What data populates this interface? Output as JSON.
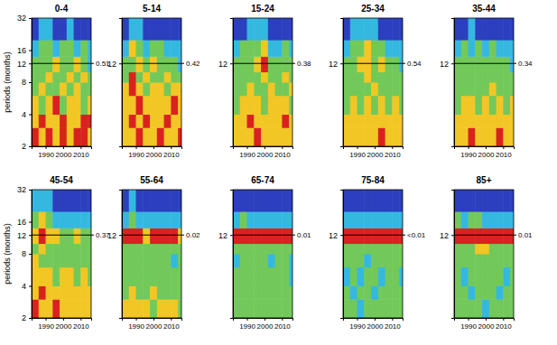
{
  "chart_data": [
    {
      "type": "heatmap",
      "title": "0-4",
      "ylabel": "periods (months)",
      "log": "y",
      "xlim": [
        1982,
        2016
      ],
      "xticks": [
        1990,
        2000,
        2010
      ],
      "ylim": [
        2,
        32
      ],
      "yticks": [
        2,
        4,
        8,
        12,
        16,
        32
      ],
      "hline": 12,
      "annotation": "0.51",
      "zlim": [
        0,
        4
      ],
      "x": [
        1982,
        1986,
        1990,
        1994,
        1998,
        2002,
        2006,
        2010,
        2014,
        2016
      ],
      "y": [
        2,
        3,
        4,
        6,
        8,
        10,
        14,
        20,
        32
      ],
      "z": [
        [
          4,
          3,
          4,
          3,
          4,
          3,
          4,
          4,
          3
        ],
        [
          3,
          4,
          3,
          3,
          4,
          3,
          3,
          4,
          4
        ],
        [
          3,
          2,
          3,
          4,
          2,
          3,
          3,
          2,
          3
        ],
        [
          2,
          3,
          2,
          2,
          3,
          2,
          3,
          2,
          2
        ],
        [
          2,
          2,
          3,
          2,
          2,
          3,
          2,
          3,
          2
        ],
        [
          2,
          2,
          2,
          3,
          2,
          2,
          3,
          2,
          1
        ],
        [
          1,
          2,
          2,
          1,
          2,
          2,
          1,
          2,
          1
        ],
        [
          0,
          1,
          1,
          0,
          0,
          1,
          0,
          0,
          0
        ]
      ]
    },
    {
      "type": "heatmap",
      "title": "5-14",
      "log": "y",
      "xlim": [
        1982,
        2016
      ],
      "xticks": [
        1990,
        2000,
        2010
      ],
      "ylim": [
        2,
        32
      ],
      "yticks": [
        12
      ],
      "hline": 12,
      "annotation": "0.42",
      "zlim": [
        0,
        4
      ],
      "x": [
        1982,
        1986,
        1990,
        1994,
        1998,
        2002,
        2006,
        2010,
        2014,
        2016
      ],
      "y": [
        2,
        3,
        4,
        6,
        8,
        10,
        14,
        20,
        32
      ],
      "z": [
        [
          3,
          3,
          4,
          3,
          3,
          4,
          3,
          3,
          4
        ],
        [
          3,
          4,
          3,
          4,
          3,
          3,
          4,
          3,
          3
        ],
        [
          3,
          3,
          4,
          3,
          3,
          3,
          3,
          4,
          3
        ],
        [
          3,
          4,
          3,
          2,
          3,
          3,
          2,
          3,
          3
        ],
        [
          2,
          4,
          2,
          3,
          2,
          2,
          3,
          2,
          2
        ],
        [
          2,
          2,
          3,
          2,
          3,
          2,
          2,
          2,
          1
        ],
        [
          1,
          3,
          2,
          1,
          2,
          2,
          1,
          1,
          1
        ],
        [
          0,
          1,
          1,
          0,
          0,
          0,
          0,
          0,
          0
        ]
      ]
    },
    {
      "type": "heatmap",
      "title": "15-24",
      "log": "y",
      "xlim": [
        1982,
        2016
      ],
      "xticks": [
        1990,
        2000,
        2010
      ],
      "ylim": [
        2,
        32
      ],
      "yticks": [
        12
      ],
      "hline": 12,
      "annotation": "0.38",
      "zlim": [
        0,
        4
      ],
      "x": [
        1982,
        1986,
        1990,
        1994,
        1998,
        2002,
        2006,
        2010,
        2014,
        2016
      ],
      "y": [
        2,
        3,
        4,
        6,
        8,
        10,
        14,
        20,
        32
      ],
      "z": [
        [
          3,
          3,
          3,
          4,
          3,
          3,
          3,
          3,
          3
        ],
        [
          3,
          3,
          4,
          3,
          3,
          3,
          3,
          4,
          3
        ],
        [
          2,
          3,
          3,
          3,
          2,
          3,
          3,
          3,
          2
        ],
        [
          2,
          2,
          3,
          2,
          2,
          3,
          2,
          2,
          3
        ],
        [
          2,
          2,
          2,
          2,
          3,
          2,
          2,
          3,
          2
        ],
        [
          2,
          2,
          2,
          3,
          4,
          2,
          2,
          2,
          2
        ],
        [
          1,
          2,
          2,
          2,
          3,
          1,
          1,
          2,
          1
        ],
        [
          0,
          0,
          1,
          1,
          1,
          0,
          0,
          0,
          0
        ]
      ]
    },
    {
      "type": "heatmap",
      "title": "25-34",
      "log": "y",
      "xlim": [
        1982,
        2016
      ],
      "xticks": [
        1990,
        2000,
        2010
      ],
      "ylim": [
        2,
        32
      ],
      "yticks": [
        12
      ],
      "hline": 12,
      "annotation": "0.54",
      "zlim": [
        0,
        4
      ],
      "x": [
        1982,
        1986,
        1990,
        1994,
        1998,
        2002,
        2006,
        2010,
        2014,
        2016
      ],
      "y": [
        2,
        3,
        4,
        6,
        8,
        10,
        14,
        20,
        32
      ],
      "z": [
        [
          3,
          3,
          3,
          3,
          3,
          4,
          3,
          3,
          3
        ],
        [
          3,
          3,
          3,
          3,
          3,
          3,
          3,
          3,
          3
        ],
        [
          2,
          3,
          2,
          3,
          2,
          3,
          2,
          3,
          2
        ],
        [
          2,
          2,
          2,
          2,
          3,
          2,
          2,
          2,
          2
        ],
        [
          2,
          2,
          2,
          3,
          2,
          2,
          2,
          2,
          2
        ],
        [
          2,
          2,
          3,
          3,
          2,
          3,
          2,
          2,
          1
        ],
        [
          1,
          2,
          2,
          3,
          2,
          2,
          1,
          1,
          1
        ],
        [
          0,
          1,
          1,
          1,
          1,
          0,
          0,
          0,
          0
        ]
      ]
    },
    {
      "type": "heatmap",
      "title": "35-44",
      "log": "y",
      "xlim": [
        1982,
        2016
      ],
      "xticks": [
        1990,
        2000,
        2010
      ],
      "ylim": [
        2,
        32
      ],
      "yticks": [
        12
      ],
      "hline": 12,
      "annotation": "0.34",
      "zlim": [
        0,
        4
      ],
      "x": [
        1982,
        1986,
        1990,
        1994,
        1998,
        2002,
        2006,
        2010,
        2014,
        2016
      ],
      "y": [
        2,
        3,
        4,
        6,
        8,
        10,
        14,
        20,
        32
      ],
      "z": [
        [
          3,
          3,
          4,
          3,
          3,
          3,
          4,
          3,
          3
        ],
        [
          3,
          3,
          3,
          3,
          3,
          3,
          3,
          3,
          3
        ],
        [
          2,
          3,
          3,
          2,
          3,
          2,
          3,
          2,
          3
        ],
        [
          2,
          2,
          2,
          2,
          2,
          3,
          2,
          2,
          2
        ],
        [
          2,
          2,
          2,
          2,
          2,
          2,
          2,
          2,
          2
        ],
        [
          2,
          2,
          2,
          2,
          2,
          2,
          2,
          2,
          1
        ],
        [
          1,
          2,
          1,
          2,
          1,
          2,
          1,
          1,
          1
        ],
        [
          0,
          0,
          1,
          0,
          0,
          0,
          0,
          0,
          0
        ]
      ]
    },
    {
      "type": "heatmap",
      "title": "45-54",
      "ylabel": "periods (months)",
      "log": "y",
      "xlim": [
        1982,
        2016
      ],
      "xticks": [
        1990,
        2000,
        2010
      ],
      "ylim": [
        2,
        32
      ],
      "yticks": [
        2,
        4,
        8,
        12,
        16,
        32
      ],
      "hline": 12,
      "annotation": "0.37",
      "zlim": [
        0,
        4
      ],
      "x": [
        1982,
        1986,
        1990,
        1994,
        1998,
        2002,
        2006,
        2010,
        2014,
        2016
      ],
      "y": [
        2,
        3,
        4,
        6,
        8,
        10,
        14,
        20,
        32
      ],
      "z": [
        [
          4,
          3,
          3,
          4,
          3,
          3,
          3,
          3,
          3
        ],
        [
          3,
          4,
          3,
          3,
          3,
          3,
          3,
          3,
          3
        ],
        [
          3,
          3,
          3,
          2,
          3,
          3,
          2,
          3,
          2
        ],
        [
          3,
          2,
          2,
          2,
          2,
          2,
          2,
          2,
          2
        ],
        [
          2,
          3,
          2,
          2,
          2,
          2,
          2,
          2,
          2
        ],
        [
          3,
          4,
          3,
          3,
          2,
          2,
          3,
          2,
          2
        ],
        [
          2,
          3,
          2,
          1,
          1,
          1,
          1,
          1,
          1
        ],
        [
          1,
          1,
          1,
          0,
          0,
          0,
          0,
          0,
          0
        ]
      ]
    },
    {
      "type": "heatmap",
      "title": "55-64",
      "log": "y",
      "xlim": [
        1982,
        2016
      ],
      "xticks": [
        1990,
        2000,
        2010
      ],
      "ylim": [
        2,
        32
      ],
      "yticks": [
        12
      ],
      "hline": 12,
      "annotation": "0.02",
      "zlim": [
        0,
        4
      ],
      "x": [
        1982,
        1986,
        1990,
        1994,
        1998,
        2002,
        2006,
        2010,
        2014,
        2016
      ],
      "y": [
        2,
        3,
        4,
        6,
        8,
        10,
        14,
        20,
        32
      ],
      "z": [
        [
          3,
          3,
          3,
          3,
          2,
          3,
          3,
          3,
          2
        ],
        [
          2,
          3,
          2,
          2,
          3,
          2,
          2,
          2,
          2
        ],
        [
          2,
          2,
          2,
          2,
          2,
          2,
          2,
          2,
          2
        ],
        [
          2,
          2,
          2,
          2,
          2,
          2,
          2,
          1,
          2
        ],
        [
          2,
          2,
          2,
          2,
          2,
          2,
          2,
          2,
          2
        ],
        [
          4,
          4,
          4,
          3,
          4,
          4,
          4,
          4,
          3
        ],
        [
          1,
          2,
          1,
          1,
          1,
          1,
          1,
          1,
          1
        ],
        [
          0,
          1,
          0,
          0,
          0,
          0,
          0,
          0,
          0
        ]
      ]
    },
    {
      "type": "heatmap",
      "title": "65-74",
      "log": "y",
      "xlim": [
        1982,
        2016
      ],
      "xticks": [
        1990,
        2000,
        2010
      ],
      "ylim": [
        2,
        32
      ],
      "yticks": [
        12
      ],
      "hline": 12,
      "annotation": "0.01",
      "zlim": [
        0,
        4
      ],
      "x": [
        1982,
        1986,
        1990,
        1994,
        1998,
        2002,
        2006,
        2010,
        2014,
        2016
      ],
      "y": [
        2,
        3,
        4,
        6,
        8,
        10,
        14,
        20,
        32
      ],
      "z": [
        [
          2,
          2,
          2,
          2,
          2,
          2,
          2,
          2,
          2
        ],
        [
          2,
          2,
          2,
          2,
          2,
          2,
          2,
          2,
          2
        ],
        [
          2,
          2,
          2,
          2,
          2,
          2,
          2,
          2,
          1
        ],
        [
          1,
          2,
          2,
          2,
          2,
          1,
          2,
          2,
          1
        ],
        [
          2,
          2,
          2,
          2,
          2,
          2,
          2,
          2,
          2
        ],
        [
          4,
          4,
          4,
          4,
          4,
          4,
          4,
          4,
          4
        ],
        [
          1,
          2,
          1,
          1,
          1,
          1,
          1,
          1,
          1
        ],
        [
          0,
          0,
          0,
          0,
          0,
          0,
          0,
          0,
          0
        ]
      ]
    },
    {
      "type": "heatmap",
      "title": "75-84",
      "log": "y",
      "xlim": [
        1982,
        2016
      ],
      "xticks": [
        1990,
        2000,
        2010
      ],
      "ylim": [
        2,
        32
      ],
      "yticks": [
        12
      ],
      "hline": 12,
      "annotation": "<0.01",
      "zlim": [
        0,
        4
      ],
      "x": [
        1982,
        1986,
        1990,
        1994,
        1998,
        2002,
        2006,
        2010,
        2014,
        2016
      ],
      "y": [
        2,
        3,
        4,
        6,
        8,
        10,
        14,
        20,
        32
      ],
      "z": [
        [
          2,
          2,
          1,
          2,
          2,
          2,
          2,
          2,
          2
        ],
        [
          2,
          1,
          2,
          2,
          1,
          2,
          2,
          2,
          2
        ],
        [
          1,
          2,
          1,
          2,
          2,
          1,
          2,
          2,
          1
        ],
        [
          2,
          2,
          2,
          1,
          2,
          2,
          2,
          2,
          2
        ],
        [
          2,
          2,
          2,
          2,
          2,
          2,
          2,
          2,
          2
        ],
        [
          4,
          4,
          4,
          4,
          4,
          4,
          4,
          4,
          4
        ],
        [
          1,
          1,
          1,
          1,
          1,
          1,
          1,
          1,
          1
        ],
        [
          0,
          0,
          0,
          0,
          0,
          0,
          0,
          0,
          0
        ]
      ]
    },
    {
      "type": "heatmap",
      "title": "85+",
      "log": "y",
      "xlim": [
        1982,
        2016
      ],
      "xticks": [
        1990,
        2000,
        2010
      ],
      "ylim": [
        2,
        32
      ],
      "yticks": [
        12
      ],
      "hline": 12,
      "annotation": "0.01",
      "zlim": [
        0,
        4
      ],
      "x": [
        1982,
        1986,
        1990,
        1994,
        1998,
        2002,
        2006,
        2010,
        2014,
        2016
      ],
      "y": [
        2,
        3,
        4,
        6,
        8,
        10,
        14,
        20,
        32
      ],
      "z": [
        [
          2,
          2,
          2,
          2,
          1,
          2,
          2,
          2,
          2
        ],
        [
          2,
          2,
          1,
          2,
          2,
          2,
          1,
          2,
          2
        ],
        [
          2,
          1,
          2,
          2,
          2,
          2,
          2,
          1,
          2
        ],
        [
          2,
          2,
          2,
          2,
          2,
          2,
          2,
          2,
          2
        ],
        [
          2,
          2,
          2,
          3,
          3,
          2,
          2,
          2,
          2
        ],
        [
          4,
          4,
          4,
          4,
          4,
          4,
          4,
          4,
          4
        ],
        [
          2,
          1,
          2,
          2,
          1,
          1,
          1,
          1,
          1
        ],
        [
          0,
          0,
          0,
          0,
          0,
          0,
          0,
          0,
          0
        ]
      ]
    }
  ]
}
